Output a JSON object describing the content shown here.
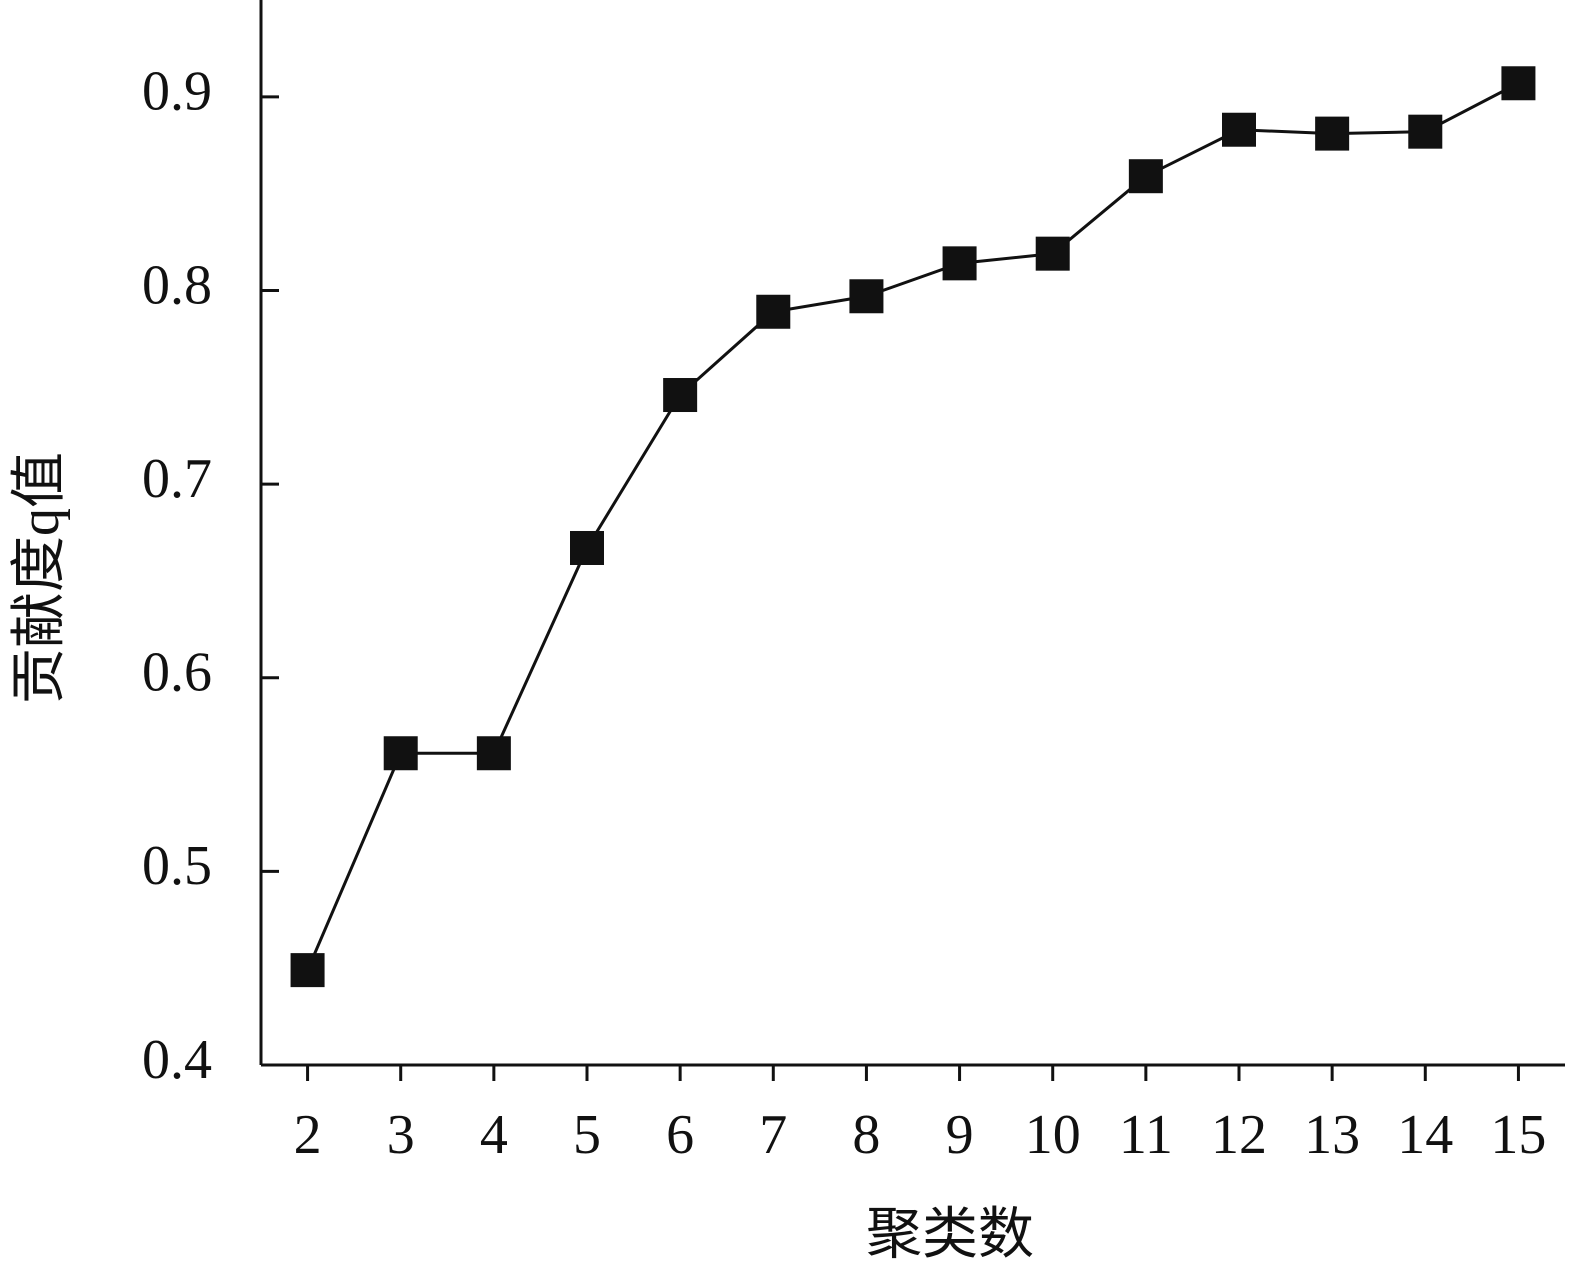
{
  "chart_data": {
    "type": "line",
    "x": [
      2,
      3,
      4,
      5,
      6,
      7,
      8,
      9,
      10,
      11,
      12,
      13,
      14,
      15
    ],
    "series": [
      {
        "color": "#111111",
        "values": [
          0.449,
          0.561,
          0.561,
          0.667,
          0.746,
          0.789,
          0.797,
          0.814,
          0.819,
          0.859,
          0.883,
          0.881,
          0.882,
          0.907
        ]
      }
    ],
    "xlim": [
      1.5,
      15.5
    ],
    "xticks": [
      2,
      3,
      4,
      5,
      6,
      7,
      8,
      9,
      10,
      11,
      12,
      13,
      14,
      15
    ],
    "ylim": [
      0.4,
      0.95
    ],
    "yticks": [
      0.4,
      0.5,
      0.6,
      0.7,
      0.8,
      0.9
    ],
    "x_label": "聚类数",
    "y_label": "贡献度q值",
    "grid": false
  }
}
